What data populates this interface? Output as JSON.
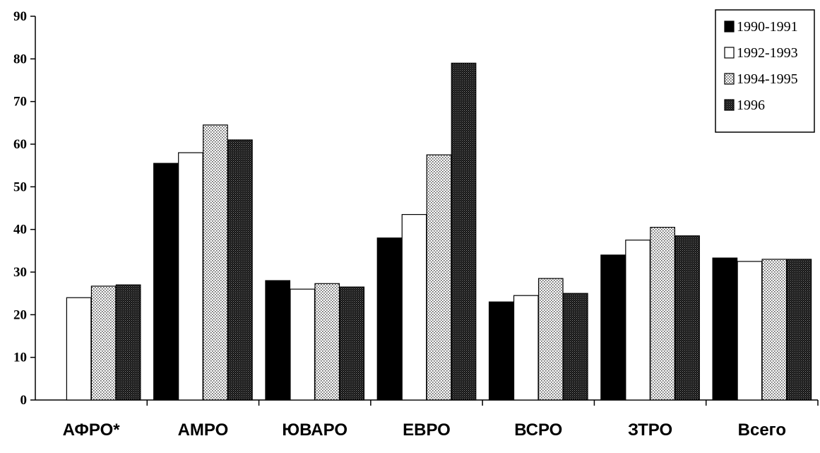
{
  "chart_data": {
    "type": "bar",
    "categories": [
      "АФРО*",
      "АМРО",
      "ЮВАРО",
      "ЕВРО",
      "ВСРО",
      "ЗТРО",
      "Всего"
    ],
    "series": [
      {
        "name": "1990-1991",
        "values": [
          0,
          55.5,
          28,
          38,
          23,
          34,
          33.3
        ]
      },
      {
        "name": "1992-1993",
        "values": [
          24,
          58,
          26,
          43.5,
          24.5,
          37.5,
          32.5
        ]
      },
      {
        "name": "1994-1995",
        "values": [
          26.7,
          64.5,
          27.3,
          57.5,
          28.5,
          40.5,
          33
        ]
      },
      {
        "name": "1996",
        "values": [
          27,
          61,
          26.5,
          79,
          25,
          38.5,
          33
        ]
      }
    ],
    "ylim": [
      0,
      90
    ],
    "yticks": [
      0,
      10,
      20,
      30,
      40,
      50,
      60,
      70,
      80,
      90
    ],
    "legend_position": "top-right",
    "grid": false,
    "colors": {
      "1990-1991": "#000000",
      "1992-1993": "#ffffff",
      "1994-1995": "pattern-light-dots",
      "1996": "pattern-dark-dots"
    }
  }
}
